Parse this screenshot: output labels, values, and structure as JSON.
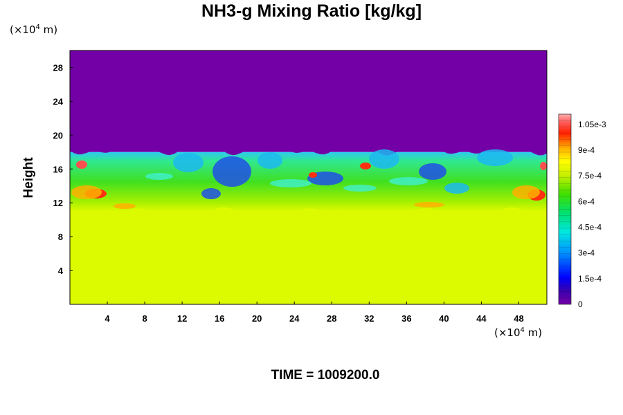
{
  "chart_data": {
    "type": "heatmap",
    "title": "NH3-g Mixing Ratio [kg/kg]",
    "ylabel": "Height",
    "xunit_prefix": "(×10",
    "xunit_exp": "4",
    "xunit_suffix": " m)",
    "yunit_prefix": "(×10",
    "yunit_exp": "4",
    "yunit_suffix": " m)",
    "xlim": [
      0,
      51
    ],
    "ylim": [
      0,
      30
    ],
    "xticks": [
      4,
      8,
      12,
      16,
      20,
      24,
      28,
      32,
      36,
      40,
      44,
      48
    ],
    "yticks": [
      4,
      8,
      12,
      16,
      20,
      24,
      28
    ],
    "colorbar": {
      "min": 0,
      "max": 0.00111,
      "ticks": [
        {
          "value": 0,
          "label": "0"
        },
        {
          "value": 0.00015,
          "label": "1.5e-4"
        },
        {
          "value": 0.0003,
          "label": "3e-4"
        },
        {
          "value": 0.00045,
          "label": "4.5e-4"
        },
        {
          "value": 0.0006,
          "label": "6e-4"
        },
        {
          "value": 0.00075,
          "label": "7.5e-4"
        },
        {
          "value": 0.0009,
          "label": "9e-4"
        },
        {
          "value": 0.00105,
          "label": "1.05e-3"
        }
      ]
    },
    "regions": [
      {
        "y_range": [
          0,
          11
        ],
        "value": 0.00075
      },
      {
        "y_range": [
          11,
          18
        ],
        "value": 0.0004
      },
      {
        "y_range": [
          18,
          30
        ],
        "value": 0
      }
    ],
    "time_label": "TIME = 1009200.0"
  },
  "colors": {
    "top": "#7300a6",
    "bottom": "#dcfa00"
  }
}
